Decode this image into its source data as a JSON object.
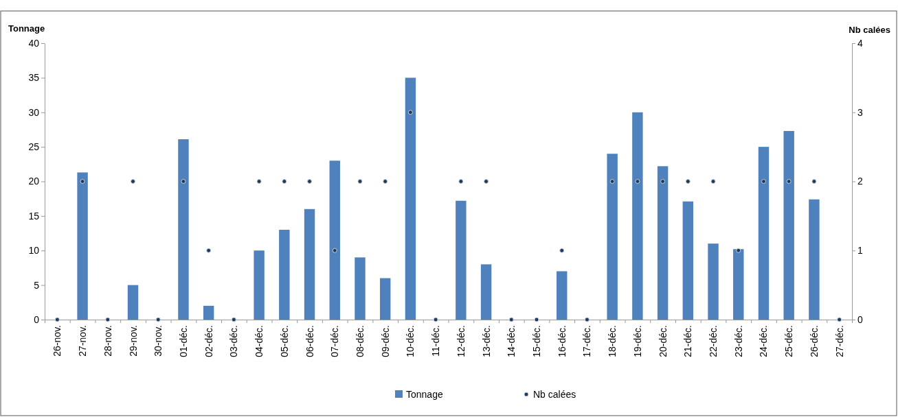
{
  "chart_data": {
    "type": "bar",
    "ylabel": "Tonnage",
    "y2label": "Nb calées",
    "categories": [
      "26-nov.",
      "27-nov.",
      "28-nov.",
      "29-nov.",
      "30-nov.",
      "01-déc.",
      "02-déc.",
      "03-déc.",
      "04-déc.",
      "05-déc.",
      "06-déc.",
      "07-déc.",
      "08-déc.",
      "09-déc.",
      "10-déc.",
      "11-déc.",
      "12-déc.",
      "13-déc.",
      "14-déc.",
      "15-déc.",
      "16-déc.",
      "17-déc.",
      "18-déc.",
      "19-déc.",
      "20-déc.",
      "21-déc.",
      "22-déc.",
      "23-déc.",
      "24-déc.",
      "25-déc.",
      "26-déc.",
      "27-déc."
    ],
    "series": [
      {
        "name": "Tonnage",
        "color": "#4f81bd",
        "values": [
          0,
          21.3,
          0,
          5,
          0,
          26.1,
          2,
          0,
          10,
          13,
          16,
          23,
          9,
          6,
          35,
          0,
          17.2,
          8,
          0,
          0,
          7,
          0,
          24,
          30,
          22.2,
          17.1,
          11,
          10.2,
          25,
          27.3,
          17.4,
          0
        ]
      },
      {
        "name": "Nb calées",
        "type": "scatter",
        "axis": "y2",
        "color": "#1f3a5a",
        "values": [
          0,
          2,
          0,
          2,
          0,
          2,
          1,
          0,
          2,
          2,
          2,
          1,
          2,
          2,
          3,
          0,
          2,
          2,
          0,
          0,
          1,
          0,
          2,
          2,
          2,
          2,
          2,
          1,
          2,
          2,
          2,
          0
        ]
      }
    ],
    "ylim": [
      0,
      40
    ],
    "yticks": [
      0,
      5,
      10,
      15,
      20,
      25,
      30,
      35,
      40
    ],
    "y2lim": [
      0,
      4
    ],
    "y2ticks": [
      0,
      1,
      2,
      3,
      4
    ],
    "marker": "circle",
    "legend": "bottom"
  }
}
